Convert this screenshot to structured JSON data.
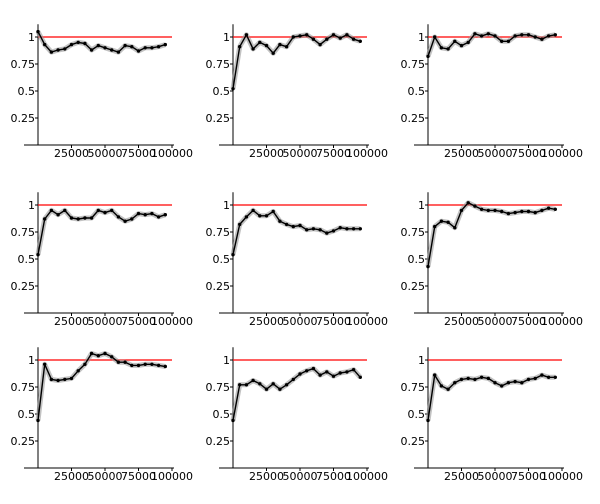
{
  "chart_data": [
    {
      "type": "line",
      "title": "",
      "xlabel": "",
      "ylabel": "",
      "xlim": [
        0,
        100000
      ],
      "ylim": [
        0,
        1.1
      ],
      "xticks": [
        {
          "value": 25000,
          "label": "25000"
        },
        {
          "value": 50000,
          "label": "50000"
        },
        {
          "value": 75000,
          "label": "75000"
        },
        {
          "value": 100000,
          "label": "100000"
        }
      ],
      "yticks": [
        {
          "value": 0.25,
          "label": "0.25"
        },
        {
          "value": 0.5,
          "label": "0.5"
        },
        {
          "value": 0.75,
          "label": "0.75"
        },
        {
          "value": 1,
          "label": "1"
        }
      ],
      "reference_line": {
        "y": 1,
        "color": "#ff0000"
      },
      "series": [
        {
          "x": [
            0,
            5000,
            10000,
            15000,
            20000,
            25000,
            30000,
            35000,
            40000,
            45000,
            50000,
            55000,
            60000,
            65000,
            70000,
            75000,
            80000,
            85000,
            90000,
            95000
          ],
          "y": [
            1.05,
            0.93,
            0.86,
            0.88,
            0.89,
            0.93,
            0.95,
            0.94,
            0.88,
            0.92,
            0.9,
            0.88,
            0.86,
            0.92,
            0.91,
            0.87,
            0.9,
            0.9,
            0.91,
            0.93
          ],
          "color": "#000000"
        }
      ]
    },
    {
      "type": "line",
      "title": "",
      "xlabel": "",
      "ylabel": "",
      "xlim": [
        0,
        100000
      ],
      "ylim": [
        0,
        1.1
      ],
      "xticks": [
        {
          "value": 25000,
          "label": "25000"
        },
        {
          "value": 50000,
          "label": "50000"
        },
        {
          "value": 75000,
          "label": "75000"
        },
        {
          "value": 100000,
          "label": "100000"
        }
      ],
      "yticks": [
        {
          "value": 0.25,
          "label": "0.25"
        },
        {
          "value": 0.5,
          "label": "0.5"
        },
        {
          "value": 0.75,
          "label": "0.75"
        },
        {
          "value": 1,
          "label": "1"
        }
      ],
      "reference_line": {
        "y": 1,
        "color": "#ff0000"
      },
      "series": [
        {
          "x": [
            0,
            5000,
            10000,
            15000,
            20000,
            25000,
            30000,
            35000,
            40000,
            45000,
            50000,
            55000,
            60000,
            65000,
            70000,
            75000,
            80000,
            85000,
            90000,
            95000
          ],
          "y": [
            0.52,
            0.91,
            1.02,
            0.89,
            0.95,
            0.92,
            0.85,
            0.93,
            0.91,
            1.0,
            1.01,
            1.02,
            0.98,
            0.93,
            0.98,
            1.02,
            0.99,
            1.02,
            0.98,
            0.96
          ],
          "color": "#000000"
        }
      ]
    },
    {
      "type": "line",
      "title": "",
      "xlabel": "",
      "ylabel": "",
      "xlim": [
        0,
        100000
      ],
      "ylim": [
        0,
        1.1
      ],
      "xticks": [
        {
          "value": 25000,
          "label": "25000"
        },
        {
          "value": 50000,
          "label": "50000"
        },
        {
          "value": 75000,
          "label": "75000"
        },
        {
          "value": 100000,
          "label": "100000"
        }
      ],
      "yticks": [
        {
          "value": 0.25,
          "label": "0.25"
        },
        {
          "value": 0.5,
          "label": "0.5"
        },
        {
          "value": 0.75,
          "label": "0.75"
        },
        {
          "value": 1,
          "label": "1"
        }
      ],
      "reference_line": {
        "y": 1,
        "color": "#ff0000"
      },
      "series": [
        {
          "x": [
            0,
            5000,
            10000,
            15000,
            20000,
            25000,
            30000,
            35000,
            40000,
            45000,
            50000,
            55000,
            60000,
            65000,
            70000,
            75000,
            80000,
            85000,
            90000,
            95000
          ],
          "y": [
            0.82,
            1.0,
            0.9,
            0.89,
            0.96,
            0.92,
            0.95,
            1.03,
            1.01,
            1.03,
            1.01,
            0.96,
            0.96,
            1.01,
            1.02,
            1.02,
            1.0,
            0.98,
            1.01,
            1.02
          ],
          "color": "#000000"
        }
      ]
    },
    {
      "type": "line",
      "title": "",
      "xlabel": "",
      "ylabel": "",
      "xlim": [
        0,
        100000
      ],
      "ylim": [
        0,
        1.1
      ],
      "xticks": [
        {
          "value": 25000,
          "label": "25000"
        },
        {
          "value": 50000,
          "label": "50000"
        },
        {
          "value": 75000,
          "label": "75000"
        },
        {
          "value": 100000,
          "label": "100000"
        }
      ],
      "yticks": [
        {
          "value": 0.25,
          "label": "0.25"
        },
        {
          "value": 0.5,
          "label": "0.5"
        },
        {
          "value": 0.75,
          "label": "0.75"
        },
        {
          "value": 1,
          "label": "1"
        }
      ],
      "reference_line": {
        "y": 1,
        "color": "#ff0000"
      },
      "series": [
        {
          "x": [
            0,
            5000,
            10000,
            15000,
            20000,
            25000,
            30000,
            35000,
            40000,
            45000,
            50000,
            55000,
            60000,
            65000,
            70000,
            75000,
            80000,
            85000,
            90000,
            95000
          ],
          "y": [
            0.54,
            0.87,
            0.95,
            0.91,
            0.95,
            0.88,
            0.87,
            0.88,
            0.88,
            0.95,
            0.93,
            0.95,
            0.89,
            0.85,
            0.87,
            0.92,
            0.91,
            0.92,
            0.89,
            0.91
          ],
          "color": "#000000"
        }
      ]
    },
    {
      "type": "line",
      "title": "",
      "xlabel": "",
      "ylabel": "",
      "xlim": [
        0,
        100000
      ],
      "ylim": [
        0,
        1.1
      ],
      "xticks": [
        {
          "value": 25000,
          "label": "25000"
        },
        {
          "value": 50000,
          "label": "50000"
        },
        {
          "value": 75000,
          "label": "75000"
        },
        {
          "value": 100000,
          "label": "100000"
        }
      ],
      "yticks": [
        {
          "value": 0.25,
          "label": "0.25"
        },
        {
          "value": 0.5,
          "label": "0.5"
        },
        {
          "value": 0.75,
          "label": "0.75"
        },
        {
          "value": 1,
          "label": "1"
        }
      ],
      "reference_line": {
        "y": 1,
        "color": "#ff0000"
      },
      "series": [
        {
          "x": [
            0,
            5000,
            10000,
            15000,
            20000,
            25000,
            30000,
            35000,
            40000,
            45000,
            50000,
            55000,
            60000,
            65000,
            70000,
            75000,
            80000,
            85000,
            90000,
            95000
          ],
          "y": [
            0.54,
            0.82,
            0.89,
            0.95,
            0.9,
            0.9,
            0.94,
            0.85,
            0.82,
            0.8,
            0.81,
            0.77,
            0.78,
            0.77,
            0.74,
            0.76,
            0.79,
            0.78,
            0.78,
            0.78
          ],
          "color": "#000000"
        }
      ]
    },
    {
      "type": "line",
      "title": "",
      "xlabel": "",
      "ylabel": "",
      "xlim": [
        0,
        100000
      ],
      "ylim": [
        0,
        1.1
      ],
      "xticks": [
        {
          "value": 25000,
          "label": "25000"
        },
        {
          "value": 50000,
          "label": "50000"
        },
        {
          "value": 75000,
          "label": "75000"
        },
        {
          "value": 100000,
          "label": "100000"
        }
      ],
      "yticks": [
        {
          "value": 0.25,
          "label": "0.25"
        },
        {
          "value": 0.5,
          "label": "0.5"
        },
        {
          "value": 0.75,
          "label": "0.75"
        },
        {
          "value": 1,
          "label": "1"
        }
      ],
      "reference_line": {
        "y": 1,
        "color": "#ff0000"
      },
      "series": [
        {
          "x": [
            0,
            5000,
            10000,
            15000,
            20000,
            25000,
            30000,
            35000,
            40000,
            45000,
            50000,
            55000,
            60000,
            65000,
            70000,
            75000,
            80000,
            85000,
            90000,
            95000
          ],
          "y": [
            0.43,
            0.8,
            0.85,
            0.84,
            0.79,
            0.95,
            1.02,
            0.99,
            0.96,
            0.95,
            0.95,
            0.94,
            0.92,
            0.93,
            0.94,
            0.94,
            0.93,
            0.95,
            0.97,
            0.96
          ],
          "color": "#000000"
        }
      ]
    },
    {
      "type": "line",
      "title": "",
      "xlabel": "",
      "ylabel": "",
      "xlim": [
        0,
        100000
      ],
      "ylim": [
        0,
        1.1
      ],
      "xticks": [
        {
          "value": 25000,
          "label": "25000"
        },
        {
          "value": 50000,
          "label": "50000"
        },
        {
          "value": 75000,
          "label": "75000"
        },
        {
          "value": 100000,
          "label": "100000"
        }
      ],
      "yticks": [
        {
          "value": 0.25,
          "label": "0.25"
        },
        {
          "value": 0.5,
          "label": "0.5"
        },
        {
          "value": 0.75,
          "label": "0.75"
        },
        {
          "value": 1,
          "label": "1"
        }
      ],
      "reference_line": {
        "y": 1,
        "color": "#ff0000"
      },
      "series": [
        {
          "x": [
            0,
            5000,
            10000,
            15000,
            20000,
            25000,
            30000,
            35000,
            40000,
            45000,
            50000,
            55000,
            60000,
            65000,
            70000,
            75000,
            80000,
            85000,
            90000,
            95000
          ],
          "y": [
            0.44,
            0.96,
            0.82,
            0.81,
            0.82,
            0.83,
            0.9,
            0.96,
            1.06,
            1.04,
            1.06,
            1.03,
            0.98,
            0.98,
            0.95,
            0.95,
            0.96,
            0.96,
            0.95,
            0.94
          ],
          "color": "#000000"
        }
      ]
    },
    {
      "type": "line",
      "title": "",
      "xlabel": "",
      "ylabel": "",
      "xlim": [
        0,
        100000
      ],
      "ylim": [
        0,
        1.1
      ],
      "xticks": [
        {
          "value": 25000,
          "label": "25000"
        },
        {
          "value": 50000,
          "label": "50000"
        },
        {
          "value": 75000,
          "label": "75000"
        },
        {
          "value": 100000,
          "label": "100000"
        }
      ],
      "yticks": [
        {
          "value": 0.25,
          "label": "0.25"
        },
        {
          "value": 0.5,
          "label": "0.5"
        },
        {
          "value": 0.75,
          "label": "0.75"
        },
        {
          "value": 1,
          "label": "1"
        }
      ],
      "reference_line": {
        "y": 1,
        "color": "#ff0000"
      },
      "series": [
        {
          "x": [
            0,
            5000,
            10000,
            15000,
            20000,
            25000,
            30000,
            35000,
            40000,
            45000,
            50000,
            55000,
            60000,
            65000,
            70000,
            75000,
            80000,
            85000,
            90000,
            95000
          ],
          "y": [
            0.44,
            0.77,
            0.77,
            0.81,
            0.78,
            0.73,
            0.78,
            0.73,
            0.77,
            0.82,
            0.87,
            0.9,
            0.92,
            0.86,
            0.89,
            0.85,
            0.88,
            0.89,
            0.91,
            0.84
          ],
          "color": "#000000"
        }
      ]
    },
    {
      "type": "line",
      "title": "",
      "xlabel": "",
      "ylabel": "",
      "xlim": [
        0,
        100000
      ],
      "ylim": [
        0,
        1.1
      ],
      "xticks": [
        {
          "value": 25000,
          "label": "25000"
        },
        {
          "value": 50000,
          "label": "50000"
        },
        {
          "value": 75000,
          "label": "75000"
        },
        {
          "value": 100000,
          "label": "100000"
        }
      ],
      "yticks": [
        {
          "value": 0.25,
          "label": "0.25"
        },
        {
          "value": 0.5,
          "label": "0.5"
        },
        {
          "value": 0.75,
          "label": "0.75"
        },
        {
          "value": 1,
          "label": "1"
        }
      ],
      "reference_line": {
        "y": 1,
        "color": "#ff0000"
      },
      "series": [
        {
          "x": [
            0,
            5000,
            10000,
            15000,
            20000,
            25000,
            30000,
            35000,
            40000,
            45000,
            50000,
            55000,
            60000,
            65000,
            70000,
            75000,
            80000,
            85000,
            90000,
            95000
          ],
          "y": [
            0.44,
            0.86,
            0.76,
            0.73,
            0.79,
            0.82,
            0.83,
            0.82,
            0.84,
            0.83,
            0.79,
            0.76,
            0.79,
            0.8,
            0.79,
            0.82,
            0.83,
            0.86,
            0.84,
            0.84
          ],
          "color": "#000000"
        }
      ]
    }
  ]
}
